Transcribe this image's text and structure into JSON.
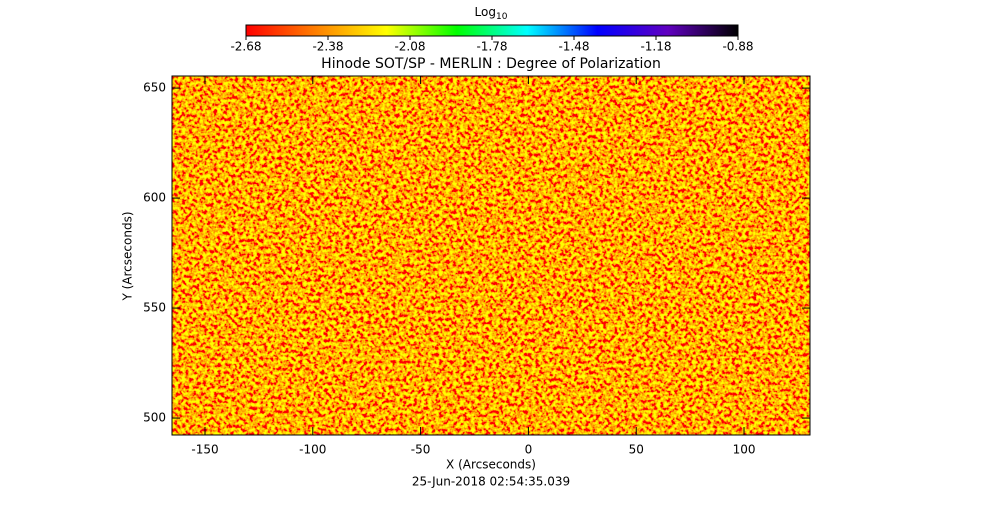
{
  "chart_data": {
    "type": "image",
    "title": "Hinode SOT/SP - MERLIN : Degree of Polarization",
    "x_label": "X (Arcseconds)",
    "y_label": "Y (Arcseconds)",
    "date": "25-Jun-2018 02:54:35.039",
    "xlim": [
      -165.3,
      130.6
    ],
    "xticks": [
      -150,
      -100,
      -50,
      0,
      50,
      100
    ],
    "ylim": [
      492.3,
      655.5
    ],
    "yticks": [
      500,
      550,
      600,
      650
    ],
    "colorbar": {
      "label": "Log",
      "label_sub": "10",
      "lim": [
        -2.68,
        -0.88
      ],
      "ticks": [
        -2.68,
        -2.38,
        -2.08,
        -1.78,
        -1.48,
        -1.18,
        -0.88
      ],
      "colormap": [
        "#ff0000",
        "#ff8000",
        "#ffff00",
        "#00ff00",
        "#00ffff",
        "#0000ff",
        "#6000c0",
        "#000000"
      ]
    }
  }
}
